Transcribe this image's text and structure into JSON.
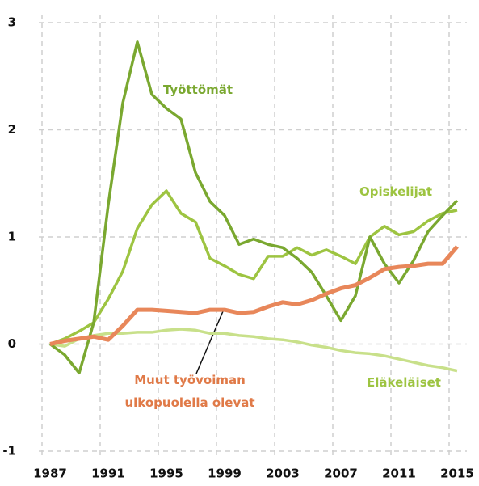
{
  "chart_data": {
    "type": "line",
    "x": [
      1987,
      1988,
      1989,
      1990,
      1991,
      1992,
      1993,
      1994,
      1995,
      1996,
      1997,
      1998,
      1999,
      2000,
      2001,
      2002,
      2003,
      2004,
      2005,
      2006,
      2007,
      2008,
      2009,
      2010,
      2011,
      2012,
      2013,
      2014,
      2015
    ],
    "series": [
      {
        "name": "Työttömät",
        "color": "#7aa830",
        "values": [
          0,
          -0.1,
          -0.27,
          0.2,
          1.3,
          2.25,
          2.82,
          2.33,
          2.2,
          2.1,
          1.6,
          1.33,
          1.2,
          0.93,
          0.98,
          0.93,
          0.9,
          0.8,
          0.67,
          0.45,
          0.22,
          0.45,
          1.0,
          0.75,
          0.57,
          0.78,
          1.05,
          1.2,
          1.34
        ]
      },
      {
        "name": "Opiskelijat",
        "color": "#9dc441",
        "values": [
          0,
          0.05,
          0.12,
          0.2,
          0.42,
          0.68,
          1.08,
          1.3,
          1.43,
          1.22,
          1.14,
          0.8,
          0.73,
          0.65,
          0.61,
          0.82,
          0.82,
          0.9,
          0.83,
          0.88,
          0.82,
          0.75,
          1.0,
          1.1,
          1.02,
          1.05,
          1.15,
          1.22,
          1.25
        ]
      },
      {
        "name": "Eläkeläiset",
        "color": "#c8e08a",
        "values": [
          0,
          -0.02,
          0.05,
          0.08,
          0.1,
          0.1,
          0.11,
          0.11,
          0.13,
          0.14,
          0.13,
          0.1,
          0.1,
          0.08,
          0.07,
          0.05,
          0.04,
          0.02,
          -0.01,
          -0.03,
          -0.06,
          -0.08,
          -0.09,
          -0.11,
          -0.14,
          -0.17,
          -0.2,
          -0.22,
          -0.25
        ]
      },
      {
        "name": "Muut työvoiman ulkopuolella olevat",
        "color": "#e8875a",
        "values": [
          0,
          0.03,
          0.05,
          0.07,
          0.04,
          0.17,
          0.32,
          0.32,
          0.31,
          0.3,
          0.29,
          0.32,
          0.32,
          0.29,
          0.3,
          0.35,
          0.39,
          0.37,
          0.41,
          0.47,
          0.52,
          0.55,
          0.62,
          0.7,
          0.72,
          0.73,
          0.75,
          0.75,
          0.91
        ]
      }
    ],
    "xlim": [
      1987,
      2015
    ],
    "xticks": [
      1987,
      1991,
      1995,
      1999,
      2003,
      2007,
      2011,
      2015
    ],
    "ylim": [
      -1,
      3
    ],
    "yticks": [
      -1,
      0,
      1,
      2,
      3
    ],
    "grid": true
  }
}
